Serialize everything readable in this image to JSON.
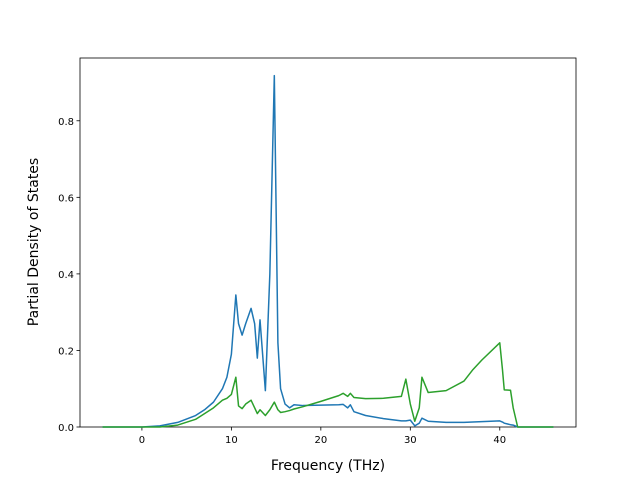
{
  "chart_data": {
    "type": "line",
    "x_label": "Frequency (THz)",
    "y_label": "Partial Density of States",
    "x": [
      -4.4,
      0,
      2,
      4,
      6,
      7,
      8,
      9,
      9.5,
      10,
      10.5,
      10.8,
      11.2,
      11.6,
      12.2,
      12.6,
      12.9,
      13.2,
      13.8,
      14.3,
      14.8,
      15.2,
      15.5,
      16,
      16.5,
      17,
      18,
      20,
      22,
      22.5,
      23,
      23.3,
      23.7,
      25,
      27,
      29,
      29.5,
      30,
      30.5,
      31,
      31.3,
      32,
      34,
      36,
      37,
      38,
      40,
      40.3,
      40.5,
      41.2,
      41.5,
      42,
      46
    ],
    "series": [
      {
        "color": "#1f77b4",
        "values": [
          0,
          0,
          0.003,
          0.012,
          0.03,
          0.045,
          0.065,
          0.1,
          0.13,
          0.19,
          0.345,
          0.27,
          0.24,
          0.27,
          0.31,
          0.27,
          0.18,
          0.28,
          0.095,
          0.4,
          0.918,
          0.22,
          0.1,
          0.06,
          0.05,
          0.058,
          0.056,
          0.057,
          0.058,
          0.059,
          0.05,
          0.058,
          0.04,
          0.03,
          0.022,
          0.016,
          0.016,
          0.018,
          0.003,
          0.01,
          0.023,
          0.015,
          0.012,
          0.012,
          0.013,
          0.014,
          0.016,
          0.013,
          0.01,
          0.006,
          0.005,
          0,
          0
        ]
      },
      {
        "color": "#2ca02c",
        "values": [
          0,
          0,
          0,
          0.005,
          0.02,
          0.035,
          0.05,
          0.07,
          0.075,
          0.085,
          0.13,
          0.055,
          0.048,
          0.06,
          0.07,
          0.05,
          0.035,
          0.045,
          0.03,
          0.045,
          0.065,
          0.045,
          0.038,
          0.04,
          0.043,
          0.047,
          0.053,
          0.067,
          0.082,
          0.088,
          0.08,
          0.088,
          0.077,
          0.074,
          0.075,
          0.08,
          0.125,
          0.06,
          0.015,
          0.05,
          0.13,
          0.09,
          0.095,
          0.12,
          0.15,
          0.175,
          0.22,
          0.15,
          0.097,
          0.096,
          0.05,
          0,
          0
        ]
      }
    ],
    "xlim": [
      -6.92,
      48.52
    ],
    "ylim": [
      0,
      0.964
    ],
    "xticks": [
      0,
      10,
      20,
      30,
      40
    ],
    "yticks": [
      {
        "value": 0,
        "label": "0.0"
      },
      0.2,
      0.4,
      0.6,
      0.8
    ]
  }
}
